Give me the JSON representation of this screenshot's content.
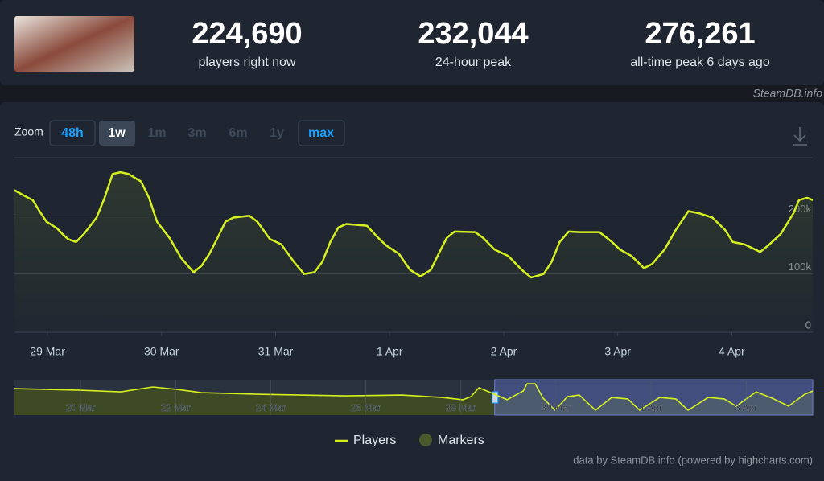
{
  "stats": [
    {
      "value": "224,690",
      "label": "players right now"
    },
    {
      "value": "232,044",
      "label": "24-hour peak"
    },
    {
      "value": "276,261",
      "label": "all-time peak 6 days ago"
    }
  ],
  "source": "SteamDB.info",
  "zoom": {
    "label": "Zoom",
    "buttons": [
      "48h",
      "1w",
      "1m",
      "3m",
      "6m",
      "1y",
      "max"
    ]
  },
  "credits": "data by SteamDB.info (powered by highcharts.com)",
  "chart_data": [
    {
      "type": "line",
      "x": [
        -0.29,
        -0.2,
        -0.13,
        -0.08,
        -0.01,
        0.08,
        0.13,
        0.18,
        0.25,
        0.32,
        0.43,
        0.5,
        0.57,
        0.64,
        0.71,
        0.82,
        0.89,
        0.96,
        1.07,
        1.17,
        1.28,
        1.35,
        1.42,
        1.49,
        1.56,
        1.63,
        1.77,
        1.84,
        1.95,
        2.05,
        2.16,
        2.25,
        2.34,
        2.41,
        2.48,
        2.55,
        2.62,
        2.8,
        2.9,
        2.97,
        3.08,
        3.18,
        3.27,
        3.36,
        3.43,
        3.5,
        3.57,
        3.75,
        3.82,
        3.92,
        4.04,
        4.16,
        4.24,
        4.35,
        4.42,
        4.49,
        4.57,
        4.67,
        4.84,
        4.95,
        5.02,
        5.12,
        5.23,
        5.3,
        5.41,
        5.51,
        5.62,
        5.72,
        5.83,
        5.94,
        6.01,
        6.11,
        6.25,
        6.32,
        6.43,
        6.54,
        6.59,
        6.66,
        6.71
      ],
      "series": [
        {
          "name": "Players",
          "color": "#d4f01f",
          "values": [
            244000,
            234000,
            227000,
            211000,
            190000,
            179000,
            169000,
            160000,
            155000,
            169000,
            197000,
            231000,
            272000,
            275000,
            272000,
            259000,
            231000,
            190000,
            162000,
            128000,
            103000,
            114000,
            135000,
            162000,
            190000,
            197000,
            200000,
            190000,
            160000,
            151000,
            121000,
            100000,
            103000,
            121000,
            155000,
            180000,
            186000,
            183000,
            162000,
            149000,
            135000,
            107000,
            96000,
            107000,
            135000,
            162000,
            173000,
            172000,
            162000,
            142000,
            131000,
            107000,
            94000,
            100000,
            121000,
            155000,
            173000,
            172000,
            172000,
            155000,
            142000,
            131000,
            110000,
            117000,
            142000,
            176000,
            208000,
            204000,
            197000,
            176000,
            155000,
            151000,
            138000,
            149000,
            169000,
            204000,
            227000,
            231000,
            227000
          ]
        }
      ],
      "markers": {
        "name": "Markers",
        "color": "#4a5a2c"
      },
      "xlim": [
        -0.29,
        6.71
      ],
      "xticks": [
        {
          "value": 0,
          "label": "29 Mar"
        },
        {
          "value": 1,
          "label": "30 Mar"
        },
        {
          "value": 2,
          "label": "31 Mar"
        },
        {
          "value": 3,
          "label": "1 Apr"
        },
        {
          "value": 4,
          "label": "2 Apr"
        },
        {
          "value": 5,
          "label": "3 Apr"
        },
        {
          "value": 6,
          "label": "4 Apr"
        }
      ],
      "ylim": [
        0,
        300000
      ],
      "yticks": [
        0,
        {
          "value": 100000,
          "label": "100k"
        },
        {
          "value": 200000,
          "label": "200k"
        }
      ],
      "grid": true
    },
    {
      "type": "area",
      "x": [
        -10.39,
        -9,
        -8.15,
        -7.48,
        -6.97,
        -6.46,
        -5.28,
        -3.42,
        -2.23,
        -1.39,
        -0.96,
        -0.79,
        -0.62,
        -0.37,
        -0.03,
        0.31,
        0.39,
        0.56,
        0.73,
        0.98,
        1.24,
        1.49,
        1.83,
        2.17,
        2.51,
        2.76,
        3.18,
        3.52,
        3.78,
        4.2,
        4.54,
        4.79,
        5.21,
        5.55,
        5.89,
        6.23,
        6.4
      ],
      "series": [
        {
          "color": "#d4f01f",
          "values": [
            240000,
            230000,
            220000,
            250000,
            235000,
            215000,
            205000,
            195000,
            200000,
            185000,
            171000,
            190000,
            245000,
            215000,
            171000,
            225000,
            270000,
            270000,
            180000,
            106000,
            190000,
            200000,
            106000,
            185000,
            176000,
            106000,
            185000,
            176000,
            106000,
            185000,
            176000,
            131000,
            220000,
            180000,
            131000,
            205000,
            225000
          ]
        }
      ],
      "xlim": [
        -10.39,
        6.4
      ],
      "xticks": [
        {
          "value": -9,
          "label": "20 Mar"
        },
        {
          "value": -7,
          "label": "22 Mar"
        },
        {
          "value": -5,
          "label": "24 Mar"
        },
        {
          "value": -3,
          "label": "26 Mar"
        },
        {
          "value": -1,
          "label": "28 Mar"
        },
        {
          "value": 1,
          "label": "30 Mar"
        },
        {
          "value": 3,
          "label": "1 Apr"
        },
        {
          "value": 5,
          "label": "3 Apr"
        }
      ],
      "ylim": [
        76000,
        295000
      ]
    }
  ]
}
